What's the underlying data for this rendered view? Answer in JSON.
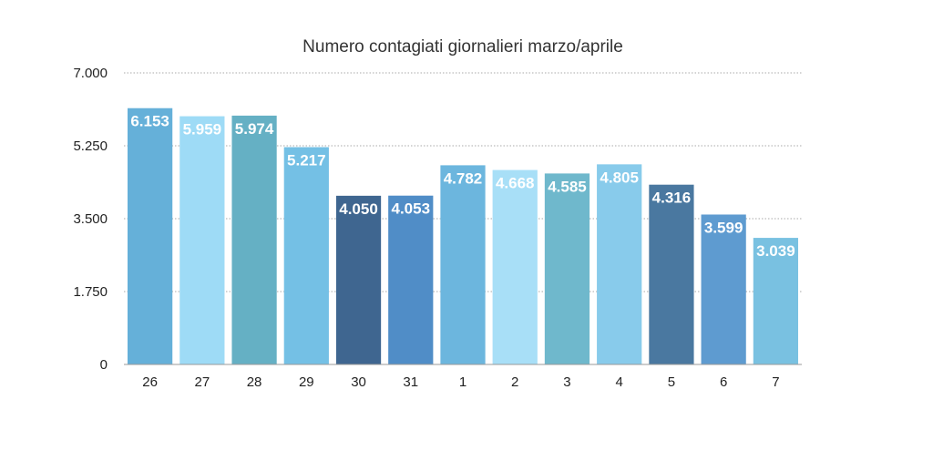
{
  "chart_data": {
    "type": "bar",
    "title": "Numero contagiati giornalieri marzo/aprile",
    "xlabel": "",
    "ylabel": "",
    "ylim": [
      0,
      7000
    ],
    "yticks": [
      0,
      1750,
      3500,
      5250,
      7000
    ],
    "ytick_labels": [
      "0",
      "1.750",
      "3.500",
      "5.250",
      "7.000"
    ],
    "grid": true,
    "categories": [
      "26",
      "27",
      "28",
      "29",
      "30",
      "31",
      "1",
      "2",
      "3",
      "4",
      "5",
      "6",
      "7"
    ],
    "values": [
      6153,
      5959,
      5974,
      5217,
      4050,
      4053,
      4782,
      4668,
      4585,
      4805,
      4316,
      3599,
      3039
    ],
    "value_labels": [
      "6.153",
      "5.959",
      "5.974",
      "5.217",
      "4.050",
      "4.053",
      "4.782",
      "4.668",
      "4.585",
      "4.805",
      "4.316",
      "3.599",
      "3.039"
    ],
    "colors": [
      "#65b0d9",
      "#9edbf6",
      "#65b0c4",
      "#74c0e5",
      "#3f6690",
      "#508dc7",
      "#6cb6de",
      "#a8dff7",
      "#6fb8cc",
      "#88cbeb",
      "#4a78a0",
      "#5e9bd0",
      "#79c1e1"
    ]
  }
}
